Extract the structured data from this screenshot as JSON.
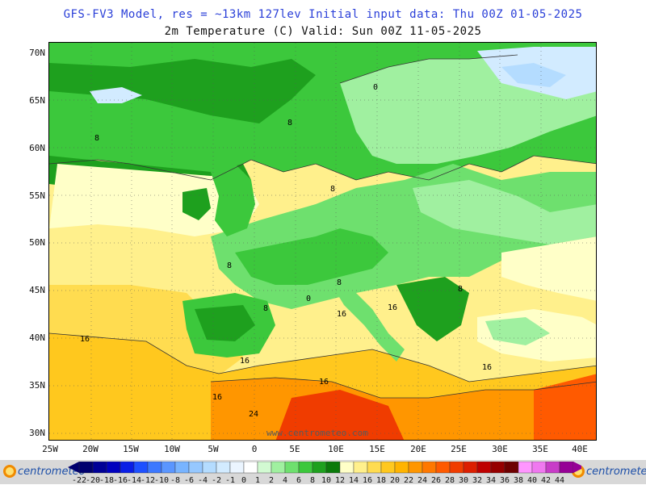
{
  "header": {
    "line1": "GFS-FV3 Model, res = ~13km 127lev   Initial input data: Thu 00Z 01-05-2025",
    "line2": "2m Temperature (C)  Valid: Sun 00Z 11-05-2025"
  },
  "map": {
    "latitude_labels": [
      "70N",
      "65N",
      "60N",
      "55N",
      "50N",
      "45N",
      "40N",
      "35N",
      "30N"
    ],
    "longitude_labels": [
      "25W",
      "20W",
      "15W",
      "10W",
      "5W",
      "0",
      "5E",
      "10E",
      "15E",
      "20E",
      "25E",
      "30E",
      "35E",
      "40E"
    ],
    "contour_labels": [
      "0",
      "8",
      "8",
      "8",
      "8",
      "8",
      "8",
      "8",
      "0",
      "16",
      "16",
      "16",
      "16",
      "16",
      "16",
      "16",
      "24"
    ],
    "watermark": "www.centrometeo.com"
  },
  "legend": {
    "logo_text": "centrometeo",
    "ticks": [
      "-22",
      "-20",
      "-18",
      "-16",
      "-14",
      "-12",
      "-10",
      "-8",
      "-6",
      "-4",
      "-2",
      "-1",
      "0",
      "1",
      "2",
      "4",
      "6",
      "8",
      "10",
      "12",
      "14",
      "16",
      "18",
      "20",
      "22",
      "24",
      "26",
      "28",
      "30",
      "32",
      "34",
      "36",
      "38",
      "40",
      "42",
      "44"
    ],
    "colors": [
      "#00006e",
      "#000096",
      "#0000be",
      "#0a1ee6",
      "#1e50ff",
      "#3c78ff",
      "#5a96ff",
      "#78b4ff",
      "#96c8ff",
      "#b4dcff",
      "#d2ebff",
      "#ebf5ff",
      "#ffffff",
      "#d2fad2",
      "#a0f0a0",
      "#6ee06e",
      "#3cc83c",
      "#1ea01e",
      "#0a7a0a",
      "#ffffc8",
      "#fff08c",
      "#ffdc50",
      "#ffc81e",
      "#ffb400",
      "#ff9600",
      "#ff7800",
      "#ff5a00",
      "#f03c00",
      "#dc1e00",
      "#be0000",
      "#960000",
      "#6e0000",
      "#ff96ff",
      "#f078f0",
      "#c83cc8",
      "#960096"
    ]
  }
}
